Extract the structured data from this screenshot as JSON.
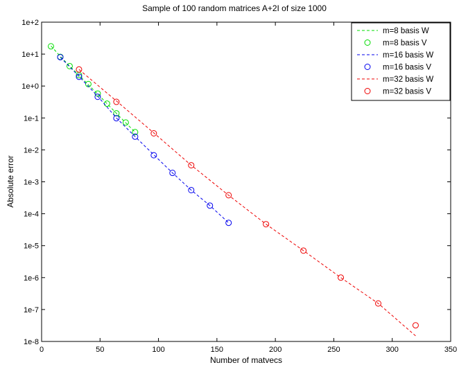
{
  "chart_data": {
    "type": "line",
    "title": "Sample of 100 random matrices A+2I of size 1000",
    "xlabel": "Number of matvecs",
    "ylabel": "Absolute error",
    "xlim": [
      0,
      350
    ],
    "ylim": [
      1e-08,
      100
    ],
    "y_scale": "log",
    "x_ticks": [
      0,
      50,
      100,
      150,
      200,
      250,
      300,
      350
    ],
    "y_ticks": [
      1e-08,
      1e-07,
      1e-06,
      1e-05,
      0.0001,
      0.001,
      0.01,
      0.1,
      1,
      10,
      100
    ],
    "y_tick_labels": [
      "1e-8",
      "1e-7",
      "1e-6",
      "1e-5",
      "1e-4",
      "1e-3",
      "1e-2",
      "1e-1",
      "1e+0",
      "1e+1",
      "1e+2"
    ],
    "grid": false,
    "legend_position": "top-right",
    "series": [
      {
        "name": "m=8 basis W",
        "style": "dashed",
        "color": "#00dd00",
        "x": [
          8,
          16,
          24,
          32,
          40,
          48,
          56,
          64,
          72,
          80
        ],
        "y": [
          18,
          8.5,
          4.2,
          2.2,
          1.1,
          0.56,
          0.28,
          0.14,
          0.07,
          0.036
        ]
      },
      {
        "name": "m=8 basis V",
        "style": "circles",
        "color": "#00dd00",
        "x": [
          8,
          16,
          24,
          32,
          40,
          48,
          56,
          64,
          72,
          80
        ],
        "y": [
          17.5,
          8.2,
          4.2,
          2.2,
          1.15,
          0.58,
          0.28,
          0.14,
          0.072,
          0.036
        ]
      },
      {
        "name": "m=16 basis W",
        "style": "dashed",
        "color": "#0000ee",
        "x": [
          16,
          32,
          48,
          64,
          80,
          96,
          112,
          128,
          144,
          160
        ],
        "y": [
          8.0,
          2.0,
          0.48,
          0.1,
          0.026,
          0.007,
          0.0019,
          0.00055,
          0.00018,
          5.2e-05
        ]
      },
      {
        "name": "m=16 basis V",
        "style": "circles",
        "color": "#0000ee",
        "x": [
          16,
          32,
          48,
          64,
          80,
          96,
          112,
          128,
          144,
          160
        ],
        "y": [
          8.0,
          1.95,
          0.46,
          0.098,
          0.026,
          0.0068,
          0.0019,
          0.00055,
          0.00018,
          5.2e-05
        ]
      },
      {
        "name": "m=32 basis W",
        "style": "dashed",
        "color": "#ee0000",
        "x": [
          32,
          64,
          96,
          128,
          160,
          192,
          224,
          256,
          288,
          320
        ],
        "y": [
          3.3,
          0.34,
          0.034,
          0.0033,
          0.00038,
          4.7e-05,
          7e-06,
          1e-06,
          1.55e-07,
          1.5e-08
        ]
      },
      {
        "name": "m=32 basis V",
        "style": "circles",
        "color": "#ee0000",
        "x": [
          32,
          64,
          96,
          128,
          160,
          192,
          224,
          256,
          288,
          320
        ],
        "y": [
          3.3,
          0.32,
          0.033,
          0.0033,
          0.00038,
          4.7e-05,
          7e-06,
          1e-06,
          1.55e-07,
          3.2e-08
        ]
      }
    ]
  }
}
